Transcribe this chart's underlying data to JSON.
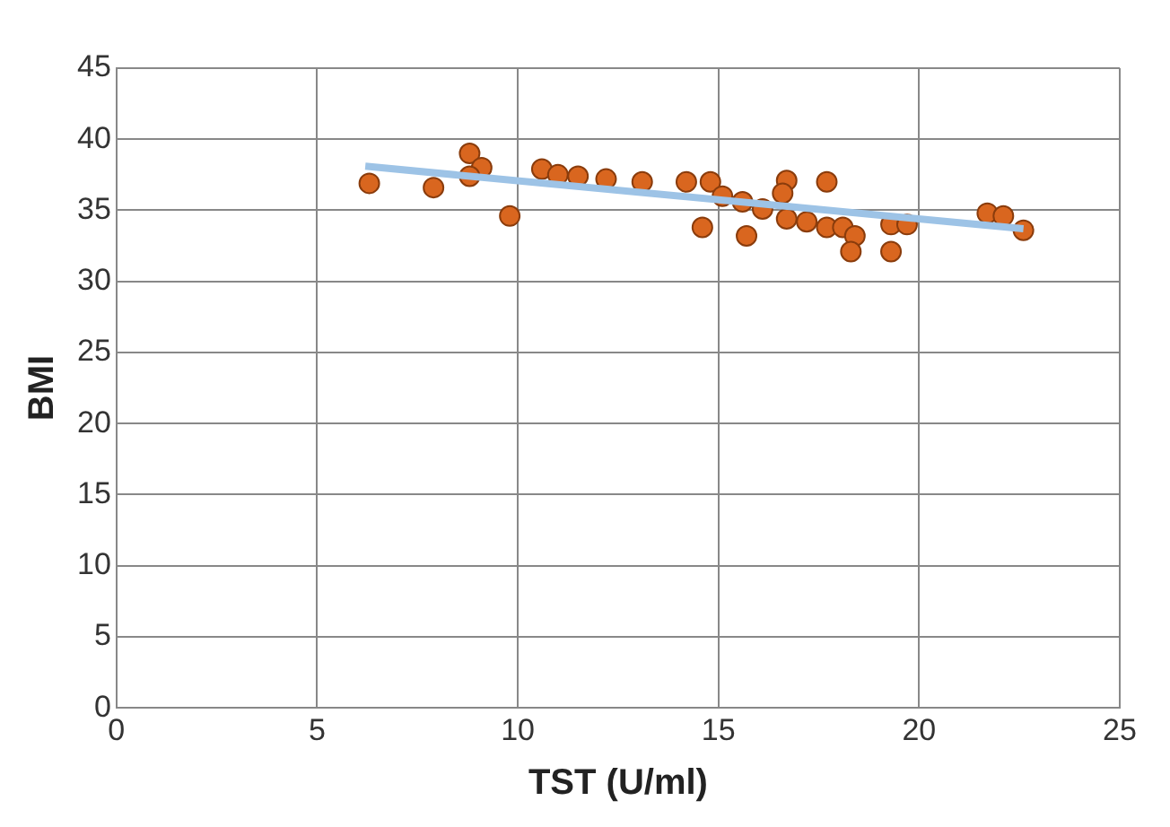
{
  "chart_data": {
    "type": "scatter",
    "xlabel": "TST (U/ml)",
    "ylabel": "BMI",
    "xlim": [
      0,
      25
    ],
    "xticks": [
      0,
      5,
      10,
      15,
      20,
      25
    ],
    "ylim": [
      0,
      45
    ],
    "yticks": [
      0,
      5,
      10,
      15,
      20,
      25,
      30,
      35,
      40,
      45
    ],
    "grid": true,
    "series": [
      {
        "marker": "circle",
        "color": "#d9661f",
        "x": [
          6.3,
          7.9,
          8.8,
          9.1,
          8.8,
          9.8,
          10.6,
          11.0,
          11.5,
          12.2,
          13.1,
          14.2,
          14.8,
          15.1,
          15.6,
          16.1,
          14.6,
          15.7,
          16.7,
          16.6,
          17.7,
          16.7,
          17.2,
          17.7,
          18.1,
          18.4,
          18.3,
          19.3,
          19.3,
          19.7,
          21.7,
          22.1,
          22.6
        ],
        "values": [
          36.9,
          36.6,
          39.0,
          38.0,
          37.4,
          34.6,
          37.9,
          37.5,
          37.4,
          37.2,
          37.0,
          37.0,
          37.0,
          36.0,
          35.6,
          35.1,
          33.8,
          33.2,
          37.1,
          36.2,
          37.0,
          34.4,
          34.2,
          33.8,
          33.8,
          33.2,
          32.1,
          32.1,
          34.0,
          34.0,
          34.8,
          34.6,
          33.6
        ]
      },
      {
        "type": "line",
        "marker": "none",
        "color": "#9dc3e6",
        "x": [
          6.2,
          22.6
        ],
        "values": [
          38.1,
          33.7
        ]
      }
    ]
  }
}
